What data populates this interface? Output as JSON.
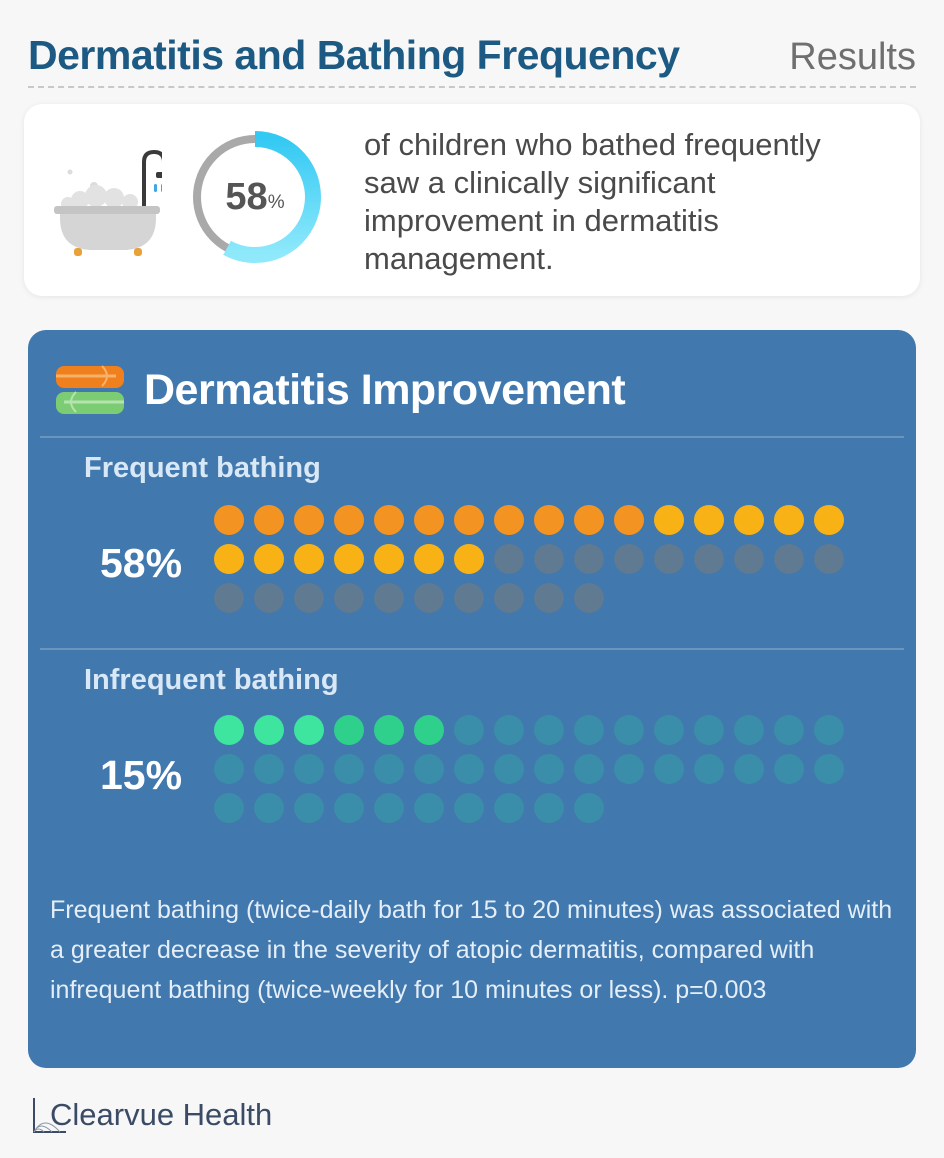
{
  "header": {
    "title": "Dermatitis and Bathing Frequency",
    "section": "Results"
  },
  "stat": {
    "value": "58",
    "unit": "%",
    "fraction": 0.58,
    "text": "of children who bathed frequently saw a clinically significant improvement in dermatitis management.",
    "icon": "bathtub-icon",
    "colors": {
      "ring_track": "#a9a9a9",
      "ring_fill": "#38d2f5"
    }
  },
  "panel": {
    "title": "Dermatitis Improvement",
    "icon": "towels-icon",
    "background": "#4178ad",
    "footnote": "Frequent bathing (twice-daily bath for 15 to 20 minutes) was associated with a greater decrease in the severity of atopic dermatitis, compared with infrequent bathing (twice-weekly for 10 minutes or less). p=0.003"
  },
  "chart_data": {
    "type": "bar",
    "categories": [
      "Frequent bathing",
      "Infrequent bathing"
    ],
    "values": [
      58,
      15
    ],
    "value_labels": [
      "58%",
      "15%"
    ],
    "unit": "%",
    "total_dots": 42,
    "filled_dots": [
      23,
      6
    ],
    "colors": {
      "frequent": [
        "#f39322",
        "#f9b215"
      ],
      "infrequent": [
        "#3ee59e",
        "#2fd08c"
      ],
      "frequent_empty": "#607a91",
      "infrequent_empty": "#3b8ea9"
    }
  },
  "brand": {
    "name": "Clearvue Health"
  }
}
